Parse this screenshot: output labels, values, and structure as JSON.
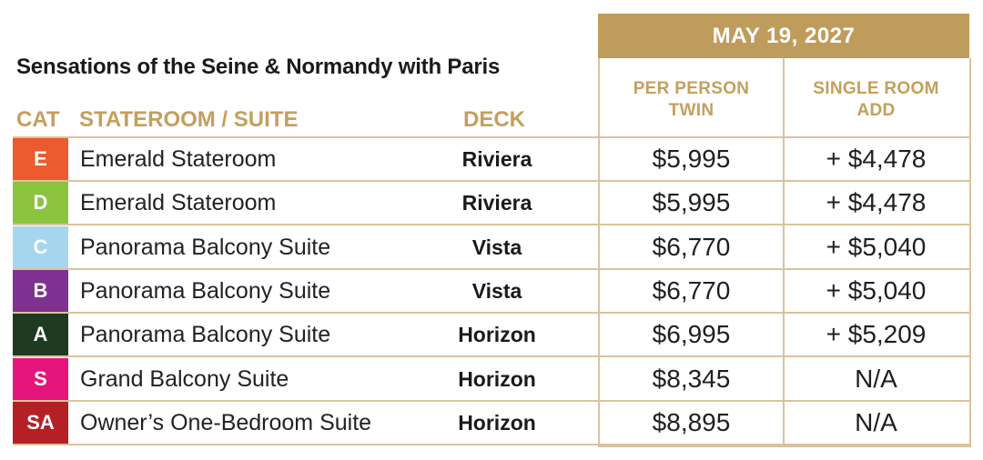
{
  "title": "Sensations of the Seine & Normandy with Paris",
  "date": "MAY 19, 2027",
  "headers": {
    "cat": "CAT",
    "stateroom": "STATEROOM / SUITE",
    "deck": "DECK",
    "per_person": "PER PERSON",
    "twin": "TWIN",
    "single_room": "SINGLE ROOM",
    "add": "ADD"
  },
  "rows": [
    {
      "cat": "E",
      "color": "#ec5a2d",
      "stateroom": "Emerald Stateroom",
      "deck": "Riviera",
      "twin": "$5,995",
      "single": "+ $4,478"
    },
    {
      "cat": "D",
      "color": "#8cc43f",
      "stateroom": "Emerald Stateroom",
      "deck": "Riviera",
      "twin": "$5,995",
      "single": "+ $4,478"
    },
    {
      "cat": "C",
      "color": "#a5d6ee",
      "stateroom": "Panorama Balcony Suite",
      "deck": "Vista",
      "twin": "$6,770",
      "single": "+ $5,040"
    },
    {
      "cat": "B",
      "color": "#7e3191",
      "stateroom": "Panorama Balcony Suite",
      "deck": "Vista",
      "twin": "$6,770",
      "single": "+ $5,040"
    },
    {
      "cat": "A",
      "color": "#1e3b22",
      "stateroom": "Panorama Balcony Suite",
      "deck": "Horizon",
      "twin": "$6,995",
      "single": "+ $5,209"
    },
    {
      "cat": "S",
      "color": "#e5157c",
      "stateroom": "Grand Balcony Suite",
      "deck": "Horizon",
      "twin": "$8,345",
      "single": "N/A"
    },
    {
      "cat": "SA",
      "color": "#b52026",
      "stateroom": "Owner’s One-Bedroom Suite",
      "deck": "Horizon",
      "twin": "$8,895",
      "single": "N/A"
    }
  ]
}
